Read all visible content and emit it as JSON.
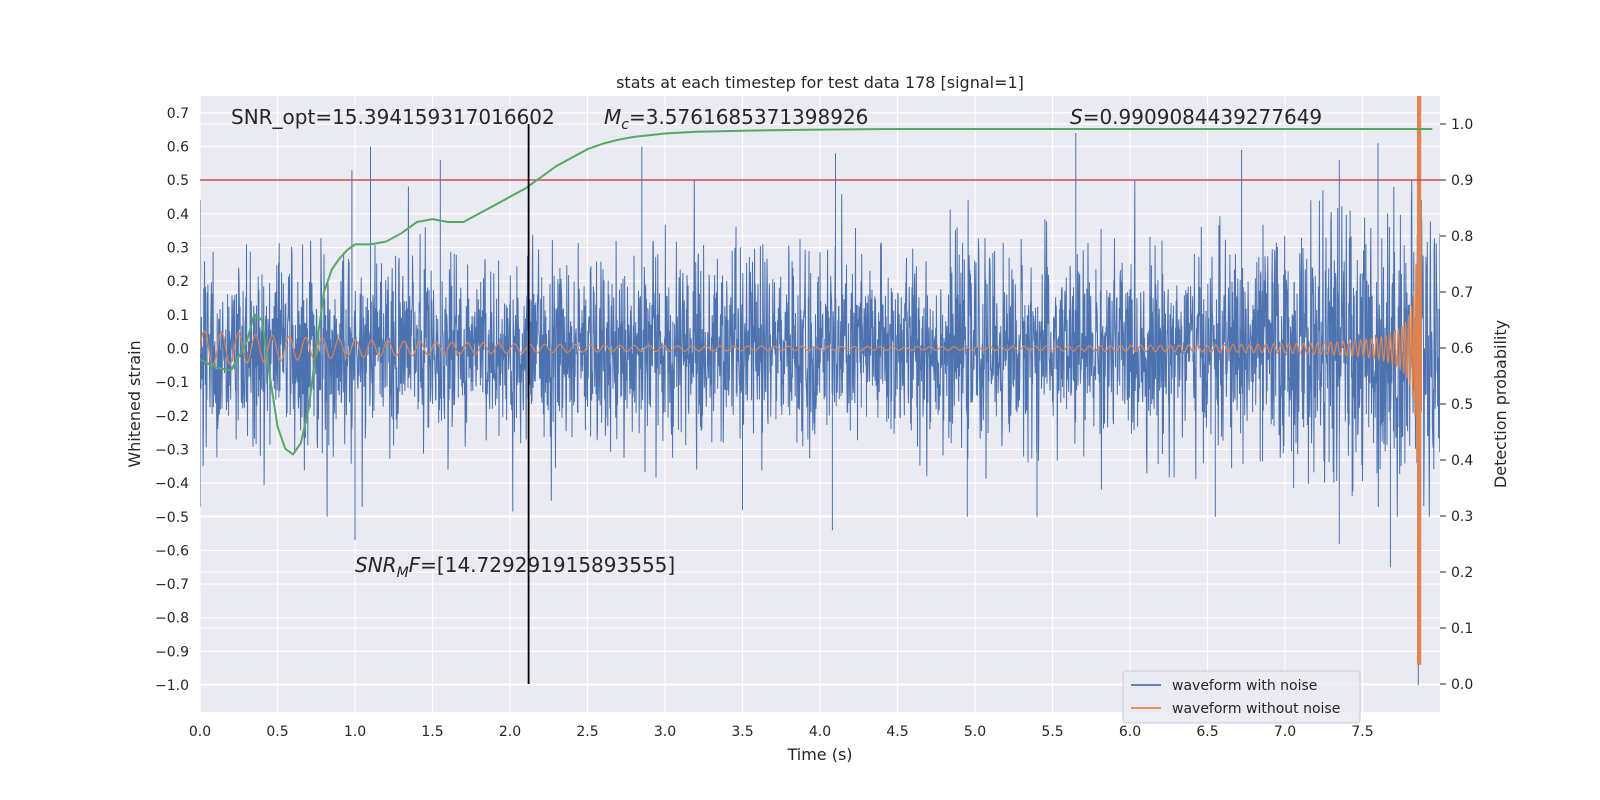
{
  "chart_data": {
    "type": "line",
    "title": "stats at each timestep for test data 178 [signal=1]",
    "xlabel": "Time (s)",
    "ylabel_left": "Whitened strain",
    "ylabel_right": "Detection probability",
    "xlim": [
      0.0,
      8.0
    ],
    "ylim_left": [
      -1.08,
      0.75
    ],
    "ylim_right": [
      -0.05,
      1.05
    ],
    "xticks": [
      "0.0",
      "0.5",
      "1.0",
      "1.5",
      "2.0",
      "2.5",
      "3.0",
      "3.5",
      "4.0",
      "4.5",
      "5.0",
      "5.5",
      "6.0",
      "6.5",
      "7.0",
      "7.5"
    ],
    "yticks_left": [
      "0.7",
      "0.6",
      "0.5",
      "0.4",
      "0.3",
      "0.2",
      "0.1",
      "0.0",
      "−0.1",
      "−0.2",
      "−0.3",
      "−0.4",
      "−0.5",
      "−0.6",
      "−0.7",
      "−0.8",
      "−0.9",
      "−1.0"
    ],
    "yticks_right": [
      "1.0",
      "0.9",
      "0.8",
      "0.7",
      "0.6",
      "0.5",
      "0.4",
      "0.3",
      "0.2",
      "0.1",
      "0.0"
    ],
    "grid": true,
    "legend_position": "lower-right",
    "threshold": {
      "axis": "right",
      "value": 0.9,
      "color": "#c44e52"
    },
    "vertical_marker": {
      "x": 2.12,
      "color": "#000000"
    },
    "annotations": {
      "snr_opt": "SNR_opt=15.394159317016602",
      "mc_symbol": "M",
      "mc_sub": "c",
      "mc_value": "=3.5761685371398926",
      "s_symbol": "S",
      "s_value": "=0.9909084439277649",
      "snr_mf_prefix": "SNR",
      "snr_mf_sub": "M",
      "snr_mf_suffix": "F",
      "snr_mf_value": "=[14.729291915893555]"
    },
    "series": [
      {
        "name": "waveform with noise",
        "color": "#4c72b0",
        "axis": "left",
        "style": "noise-band",
        "x_range": [
          0.0,
          8.0
        ],
        "typical_amplitude": 0.33,
        "peaks_top": [
          [
            0.0,
            0.44
          ],
          [
            0.98,
            0.53
          ],
          [
            1.1,
            0.6
          ],
          [
            1.55,
            0.56
          ],
          [
            2.12,
            0.58
          ],
          [
            2.85,
            0.6
          ],
          [
            4.1,
            0.58
          ],
          [
            5.65,
            0.64
          ],
          [
            6.72,
            0.59
          ],
          [
            7.35,
            0.56
          ],
          [
            7.6,
            0.61
          ],
          [
            7.88,
            0.44
          ]
        ],
        "peaks_bottom": [
          [
            0.0,
            -0.47
          ],
          [
            1.0,
            -0.57
          ],
          [
            2.12,
            -0.45
          ],
          [
            3.5,
            -0.48
          ],
          [
            4.08,
            -0.54
          ],
          [
            4.95,
            -0.5
          ],
          [
            5.4,
            -0.5
          ],
          [
            6.55,
            -0.5
          ],
          [
            7.35,
            -0.58
          ],
          [
            7.68,
            -0.65
          ],
          [
            7.86,
            -1.0
          ]
        ]
      },
      {
        "name": "waveform without noise",
        "color": "#dd8452",
        "axis": "left",
        "style": "chirp",
        "x_range": [
          0.0,
          7.88
        ],
        "start_amplitude": 0.05,
        "merger_time": 7.87,
        "merger_peak": 1.0,
        "merger_trough": -0.94
      },
      {
        "name": "",
        "color": "#55a868",
        "axis": "right",
        "style": "line",
        "x": [
          0.0,
          0.1,
          0.2,
          0.3,
          0.35,
          0.4,
          0.45,
          0.5,
          0.55,
          0.6,
          0.65,
          0.7,
          0.75,
          0.8,
          0.85,
          0.9,
          0.95,
          1.0,
          1.1,
          1.2,
          1.3,
          1.4,
          1.5,
          1.6,
          1.7,
          1.8,
          1.9,
          2.0,
          2.1,
          2.2,
          2.3,
          2.4,
          2.5,
          2.6,
          2.7,
          2.8,
          3.0,
          3.2,
          3.5,
          4.0,
          4.5,
          5.0,
          5.5,
          6.0,
          6.5,
          7.0,
          7.5,
          7.95
        ],
        "values": [
          0.58,
          0.565,
          0.56,
          0.61,
          0.66,
          0.65,
          0.55,
          0.46,
          0.42,
          0.41,
          0.43,
          0.49,
          0.6,
          0.7,
          0.74,
          0.76,
          0.775,
          0.785,
          0.785,
          0.79,
          0.805,
          0.825,
          0.83,
          0.825,
          0.825,
          0.84,
          0.855,
          0.87,
          0.885,
          0.905,
          0.925,
          0.94,
          0.955,
          0.965,
          0.972,
          0.977,
          0.983,
          0.986,
          0.988,
          0.99,
          0.991,
          0.991,
          0.991,
          0.991,
          0.991,
          0.991,
          0.991,
          0.991
        ]
      }
    ]
  }
}
